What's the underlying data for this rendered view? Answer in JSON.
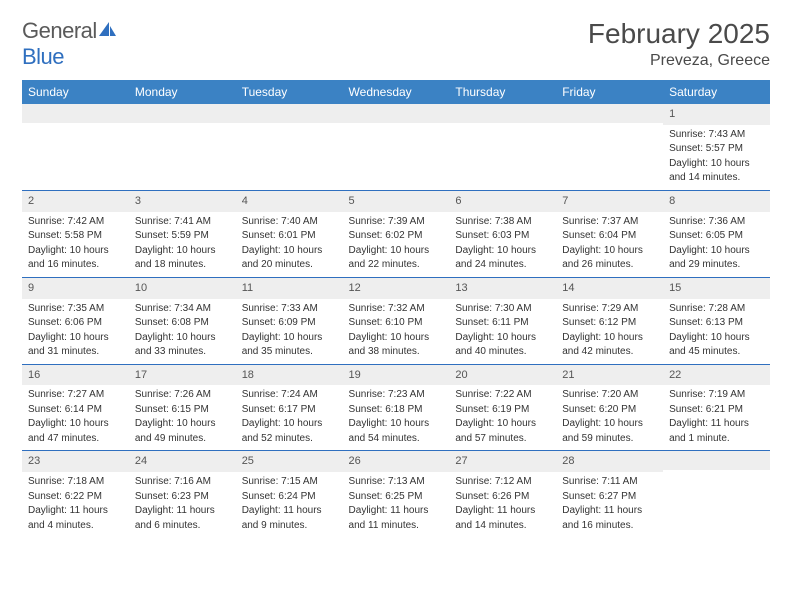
{
  "brand": {
    "name_part1": "General",
    "name_part2": "Blue"
  },
  "colors": {
    "header_bg": "#3b82c4",
    "header_text": "#ffffff",
    "rule": "#2f6fbf",
    "daynum_bg": "#eeeeee",
    "text": "#333333",
    "logo_blue": "#2f6fbf",
    "logo_gray": "#5a5a5a"
  },
  "title": "February 2025",
  "location": "Preveza, Greece",
  "weekdays": [
    "Sunday",
    "Monday",
    "Tuesday",
    "Wednesday",
    "Thursday",
    "Friday",
    "Saturday"
  ],
  "weeks": [
    [
      {
        "blank": true
      },
      {
        "blank": true
      },
      {
        "blank": true
      },
      {
        "blank": true
      },
      {
        "blank": true
      },
      {
        "blank": true
      },
      {
        "day": "1",
        "sunrise": "Sunrise: 7:43 AM",
        "sunset": "Sunset: 5:57 PM",
        "daylight1": "Daylight: 10 hours",
        "daylight2": "and 14 minutes."
      }
    ],
    [
      {
        "day": "2",
        "sunrise": "Sunrise: 7:42 AM",
        "sunset": "Sunset: 5:58 PM",
        "daylight1": "Daylight: 10 hours",
        "daylight2": "and 16 minutes."
      },
      {
        "day": "3",
        "sunrise": "Sunrise: 7:41 AM",
        "sunset": "Sunset: 5:59 PM",
        "daylight1": "Daylight: 10 hours",
        "daylight2": "and 18 minutes."
      },
      {
        "day": "4",
        "sunrise": "Sunrise: 7:40 AM",
        "sunset": "Sunset: 6:01 PM",
        "daylight1": "Daylight: 10 hours",
        "daylight2": "and 20 minutes."
      },
      {
        "day": "5",
        "sunrise": "Sunrise: 7:39 AM",
        "sunset": "Sunset: 6:02 PM",
        "daylight1": "Daylight: 10 hours",
        "daylight2": "and 22 minutes."
      },
      {
        "day": "6",
        "sunrise": "Sunrise: 7:38 AM",
        "sunset": "Sunset: 6:03 PM",
        "daylight1": "Daylight: 10 hours",
        "daylight2": "and 24 minutes."
      },
      {
        "day": "7",
        "sunrise": "Sunrise: 7:37 AM",
        "sunset": "Sunset: 6:04 PM",
        "daylight1": "Daylight: 10 hours",
        "daylight2": "and 26 minutes."
      },
      {
        "day": "8",
        "sunrise": "Sunrise: 7:36 AM",
        "sunset": "Sunset: 6:05 PM",
        "daylight1": "Daylight: 10 hours",
        "daylight2": "and 29 minutes."
      }
    ],
    [
      {
        "day": "9",
        "sunrise": "Sunrise: 7:35 AM",
        "sunset": "Sunset: 6:06 PM",
        "daylight1": "Daylight: 10 hours",
        "daylight2": "and 31 minutes."
      },
      {
        "day": "10",
        "sunrise": "Sunrise: 7:34 AM",
        "sunset": "Sunset: 6:08 PM",
        "daylight1": "Daylight: 10 hours",
        "daylight2": "and 33 minutes."
      },
      {
        "day": "11",
        "sunrise": "Sunrise: 7:33 AM",
        "sunset": "Sunset: 6:09 PM",
        "daylight1": "Daylight: 10 hours",
        "daylight2": "and 35 minutes."
      },
      {
        "day": "12",
        "sunrise": "Sunrise: 7:32 AM",
        "sunset": "Sunset: 6:10 PM",
        "daylight1": "Daylight: 10 hours",
        "daylight2": "and 38 minutes."
      },
      {
        "day": "13",
        "sunrise": "Sunrise: 7:30 AM",
        "sunset": "Sunset: 6:11 PM",
        "daylight1": "Daylight: 10 hours",
        "daylight2": "and 40 minutes."
      },
      {
        "day": "14",
        "sunrise": "Sunrise: 7:29 AM",
        "sunset": "Sunset: 6:12 PM",
        "daylight1": "Daylight: 10 hours",
        "daylight2": "and 42 minutes."
      },
      {
        "day": "15",
        "sunrise": "Sunrise: 7:28 AM",
        "sunset": "Sunset: 6:13 PM",
        "daylight1": "Daylight: 10 hours",
        "daylight2": "and 45 minutes."
      }
    ],
    [
      {
        "day": "16",
        "sunrise": "Sunrise: 7:27 AM",
        "sunset": "Sunset: 6:14 PM",
        "daylight1": "Daylight: 10 hours",
        "daylight2": "and 47 minutes."
      },
      {
        "day": "17",
        "sunrise": "Sunrise: 7:26 AM",
        "sunset": "Sunset: 6:15 PM",
        "daylight1": "Daylight: 10 hours",
        "daylight2": "and 49 minutes."
      },
      {
        "day": "18",
        "sunrise": "Sunrise: 7:24 AM",
        "sunset": "Sunset: 6:17 PM",
        "daylight1": "Daylight: 10 hours",
        "daylight2": "and 52 minutes."
      },
      {
        "day": "19",
        "sunrise": "Sunrise: 7:23 AM",
        "sunset": "Sunset: 6:18 PM",
        "daylight1": "Daylight: 10 hours",
        "daylight2": "and 54 minutes."
      },
      {
        "day": "20",
        "sunrise": "Sunrise: 7:22 AM",
        "sunset": "Sunset: 6:19 PM",
        "daylight1": "Daylight: 10 hours",
        "daylight2": "and 57 minutes."
      },
      {
        "day": "21",
        "sunrise": "Sunrise: 7:20 AM",
        "sunset": "Sunset: 6:20 PM",
        "daylight1": "Daylight: 10 hours",
        "daylight2": "and 59 minutes."
      },
      {
        "day": "22",
        "sunrise": "Sunrise: 7:19 AM",
        "sunset": "Sunset: 6:21 PM",
        "daylight1": "Daylight: 11 hours",
        "daylight2": "and 1 minute."
      }
    ],
    [
      {
        "day": "23",
        "sunrise": "Sunrise: 7:18 AM",
        "sunset": "Sunset: 6:22 PM",
        "daylight1": "Daylight: 11 hours",
        "daylight2": "and 4 minutes."
      },
      {
        "day": "24",
        "sunrise": "Sunrise: 7:16 AM",
        "sunset": "Sunset: 6:23 PM",
        "daylight1": "Daylight: 11 hours",
        "daylight2": "and 6 minutes."
      },
      {
        "day": "25",
        "sunrise": "Sunrise: 7:15 AM",
        "sunset": "Sunset: 6:24 PM",
        "daylight1": "Daylight: 11 hours",
        "daylight2": "and 9 minutes."
      },
      {
        "day": "26",
        "sunrise": "Sunrise: 7:13 AM",
        "sunset": "Sunset: 6:25 PM",
        "daylight1": "Daylight: 11 hours",
        "daylight2": "and 11 minutes."
      },
      {
        "day": "27",
        "sunrise": "Sunrise: 7:12 AM",
        "sunset": "Sunset: 6:26 PM",
        "daylight1": "Daylight: 11 hours",
        "daylight2": "and 14 minutes."
      },
      {
        "day": "28",
        "sunrise": "Sunrise: 7:11 AM",
        "sunset": "Sunset: 6:27 PM",
        "daylight1": "Daylight: 11 hours",
        "daylight2": "and 16 minutes."
      },
      {
        "blank": true
      }
    ]
  ]
}
